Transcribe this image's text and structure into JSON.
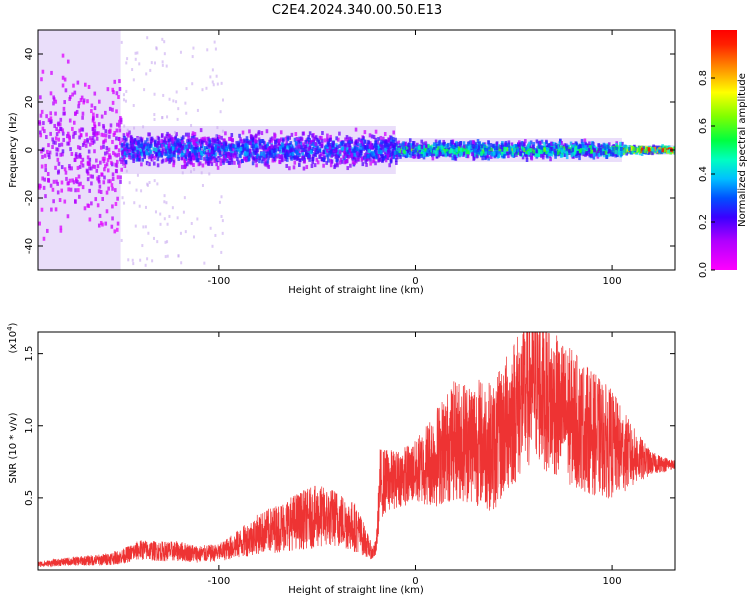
{
  "figure_title": "C2E4.2024.340.00.50.E13",
  "colors": {
    "low_purple": "#7a2ee6",
    "mid_cyan": "#19d8d0",
    "high_red": "#ff2020",
    "snr_line": "#ee3333"
  },
  "chart_data": [
    {
      "type": "heatmap",
      "xlabel": "Height of straight line (km)",
      "ylabel": "Frequency (Hz)",
      "xlim": [
        -192,
        132
      ],
      "ylim": [
        -50,
        50
      ],
      "xticks": [
        -100,
        0,
        100
      ],
      "xtick_labels": [
        "-100",
        "0",
        "100"
      ],
      "yticks": [
        -40,
        -20,
        0,
        20,
        40
      ],
      "ytick_labels": [
        "-40",
        "-20",
        "0",
        "20",
        "40"
      ],
      "colorbar": {
        "label": "Normalized spectral amplitude",
        "range": [
          0,
          1
        ],
        "ticks": [
          0.0,
          0.2,
          0.4,
          0.6,
          0.8
        ],
        "tick_labels": [
          "0.0",
          "0.2",
          "0.4",
          "0.6",
          "0.8"
        ],
        "colormap": "rainbow (magenta to red)"
      },
      "regions": [
        {
          "x_start": -192,
          "x_end": -150,
          "freq_half_width": 50,
          "amplitude": 0.15
        },
        {
          "x_start": -150,
          "x_end": -10,
          "freq_half_width": 10,
          "amplitude": 0.35
        },
        {
          "x_start": -10,
          "x_end": 105,
          "freq_half_width": 5,
          "amplitude": 0.55
        },
        {
          "x_start": 105,
          "x_end": 132,
          "freq_half_width": 2,
          "amplitude": 0.9
        }
      ]
    },
    {
      "type": "line",
      "xlabel": "Height of straight line (km)",
      "ylabel": "SNR (10 * v/v)",
      "y_multiplier_label": "(x10",
      "y_multiplier_exponent": "4",
      "y_multiplier_close": ")",
      "xlim": [
        -192,
        132
      ],
      "ylim": [
        0,
        16500
      ],
      "xticks": [
        -100,
        0,
        100
      ],
      "xtick_labels": [
        "-100",
        "0",
        "100"
      ],
      "yticks": [
        5000,
        10000,
        15000
      ],
      "ytick_labels": [
        "0.5",
        "1.0",
        "1.5"
      ],
      "series": [
        {
          "x": [
            -192,
            -175,
            -160,
            -150,
            -140,
            -130,
            -120,
            -110,
            -100,
            -90,
            -80,
            -70,
            -60,
            -50,
            -40,
            -30,
            -22,
            -20,
            -18,
            -10,
            0,
            10,
            20,
            30,
            40,
            50,
            60,
            70,
            80,
            90,
            100,
            110,
            120,
            132
          ],
          "y": [
            400,
            600,
            700,
            900,
            1400,
            1300,
            1300,
            1100,
            1200,
            1800,
            2500,
            2900,
            3400,
            3700,
            3600,
            2900,
            1200,
            1500,
            6000,
            6300,
            6800,
            7800,
            9000,
            9000,
            8500,
            11000,
            13000,
            11500,
            10500,
            9500,
            8700,
            7900,
            7400,
            7300
          ],
          "spread": [
            200,
            300,
            400,
            500,
            700,
            700,
            700,
            600,
            600,
            1000,
            1400,
            1700,
            2000,
            2200,
            2000,
            1700,
            500,
            600,
            2500,
            2000,
            2200,
            3500,
            4200,
            4500,
            4500,
            5200,
            5500,
            5000,
            4800,
            4300,
            3800,
            2200,
            800,
            300
          ]
        }
      ]
    }
  ]
}
